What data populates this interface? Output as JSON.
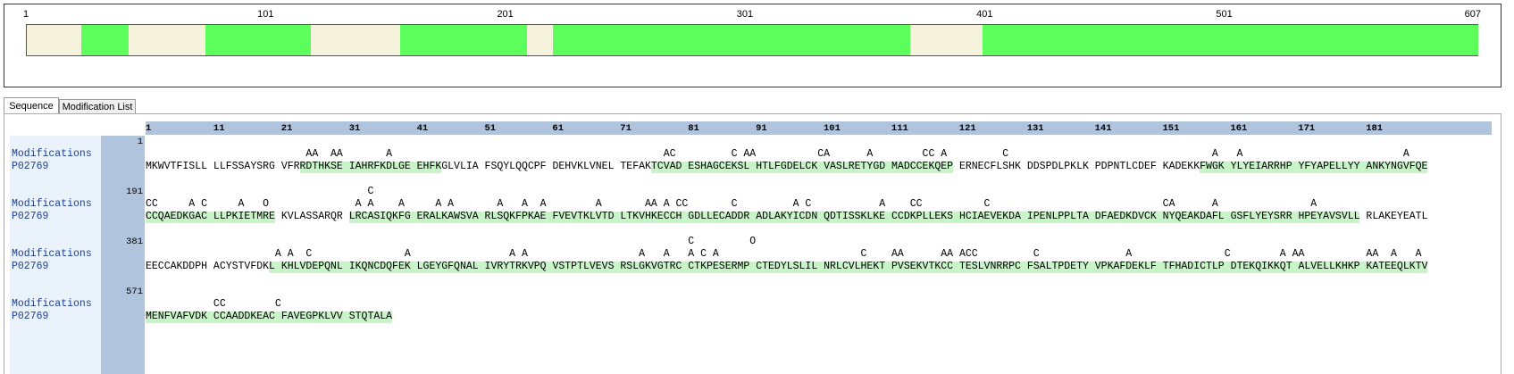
{
  "coverage": {
    "range": [
      1,
      607
    ],
    "ticks": [
      1,
      101,
      201,
      301,
      401,
      501,
      607
    ],
    "segments": [
      [
        24,
        44
      ],
      [
        76,
        120
      ],
      [
        157,
        210
      ],
      [
        221,
        370
      ],
      [
        400,
        607
      ]
    ]
  },
  "tabs": [
    "Sequence",
    "Modification List"
  ],
  "ruler": [
    1,
    11,
    21,
    31,
    41,
    51,
    61,
    71,
    81,
    91,
    101,
    111,
    121,
    131,
    141,
    151,
    161,
    171,
    181
  ],
  "row_label": "Modifications",
  "protein": "P02769",
  "rows": [
    {
      "start": 1,
      "mods": "                          AA  AA       A                                            AC         C AA          CA      A        CC A         C                                 A   A                          A",
      "sequence": "MKWVTFISLL LLFSSAYSRG VFRRDTHKSE IAHRFKDLGE EHFKGLVLIA FSQYLQQCPF DEHVKLVNEL TEFAKTCVAD ESHAGCEKSL HTLFGDELCK VASLRETYGD MADCCEKQEP ERNECFLSHK DDSPDLPKLK PDPNTLCDEF KADEKKFWGK YLYEIARRHP YFYAPELLYY ANKYNGVFQE"
    },
    {
      "start": 191,
      "mods_upper": "                                    C",
      "mods": "CC     A C     A   O              A A    A     A A       A   A  A        A       AA A CC       C         A C           A    CC          C                            CA      A               A",
      "sequence": "CCQAEDKGAC LLPKIETMRE KVLASSARQR LRCASIQKFG ERALKAWSVA RLSQKFPKAE FVEVTKLVTD LTKVHKECCH GDLLECADDR ADLAKYICDN QDTISSKLKE CCDKPLLEKS HCIAEVEKDA IPENLPPLTA DFAEDKDVCK NYQEAKDAFL GSFLYEYSRR HPEYAVSVLL RLAKEYEATL"
    },
    {
      "start": 381,
      "mods_upper": "                                                                                        C         O",
      "mods": "                     A A  C               A                A A                  A   A   A C A                       C    AA      AA ACC         C              A               C        A AA          AA  A   A",
      "sequence": "EECCAKDDPH ACYSTVFDKL KHLVDEPQNL IKQNCDQFEK LGEYGFQNAL IVRYTRKVPQ VSTPTLVEVS RSLGKVGTRC CTKPESERMP CTEDYLSLIL NRLCVLHEKT PVSEKVTKCC TESLVNRRPC FSALTPDETY VPKAFDEKLF TFHADICTLP DTEKQIKKQT ALVELLKHKP KATEEQLKTV"
    },
    {
      "start": 571,
      "mods": "           CC        C",
      "sequence": "MENFVAFVDK CCAADDKEAC FAVEGPKLVV STQTALA"
    }
  ]
}
